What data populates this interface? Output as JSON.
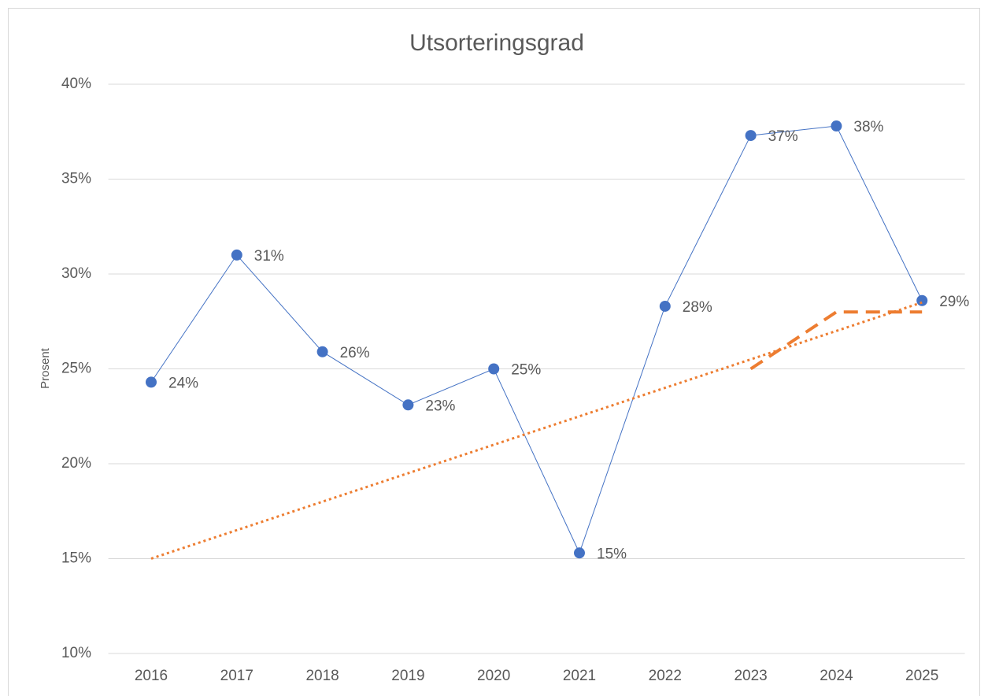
{
  "chart_data": {
    "type": "line",
    "title": "Utsorteringsgrad",
    "y_label": "Prosent",
    "categories": [
      "2016",
      "2017",
      "2018",
      "2019",
      "2020",
      "2021",
      "2022",
      "2023",
      "2024",
      "2025"
    ],
    "series": [
      {
        "color": "#4472c4",
        "line_style": "solid",
        "marker": true,
        "values": [
          24.3,
          31.0,
          25.9,
          23.1,
          25.0,
          15.3,
          28.3,
          37.3,
          37.8,
          28.6
        ],
        "value_labels": [
          "24%",
          "31%",
          "26%",
          "23%",
          "25%",
          "15%",
          "28%",
          "37%",
          "38%",
          "29%"
        ]
      },
      {
        "color": "#ed7d31",
        "line_style": "dotted",
        "marker": false,
        "values": [
          15.0,
          16.5,
          18.0,
          19.5,
          21.0,
          22.5,
          24.0,
          25.5,
          27.0,
          28.5
        ]
      },
      {
        "color": "#ed7d31",
        "line_style": "dashed",
        "marker": false,
        "values": [
          null,
          null,
          null,
          null,
          null,
          null,
          null,
          25.0,
          28.0,
          28.0
        ]
      }
    ],
    "ylim": [
      10,
      40
    ],
    "yticks": [
      {
        "value": 10,
        "label": "10%"
      },
      {
        "value": 15,
        "label": "15%"
      },
      {
        "value": 20,
        "label": "20%"
      },
      {
        "value": 25,
        "label": "25%"
      },
      {
        "value": 30,
        "label": "30%"
      },
      {
        "value": 35,
        "label": "35%"
      },
      {
        "value": 40,
        "label": "40%"
      }
    ],
    "grid": true
  }
}
